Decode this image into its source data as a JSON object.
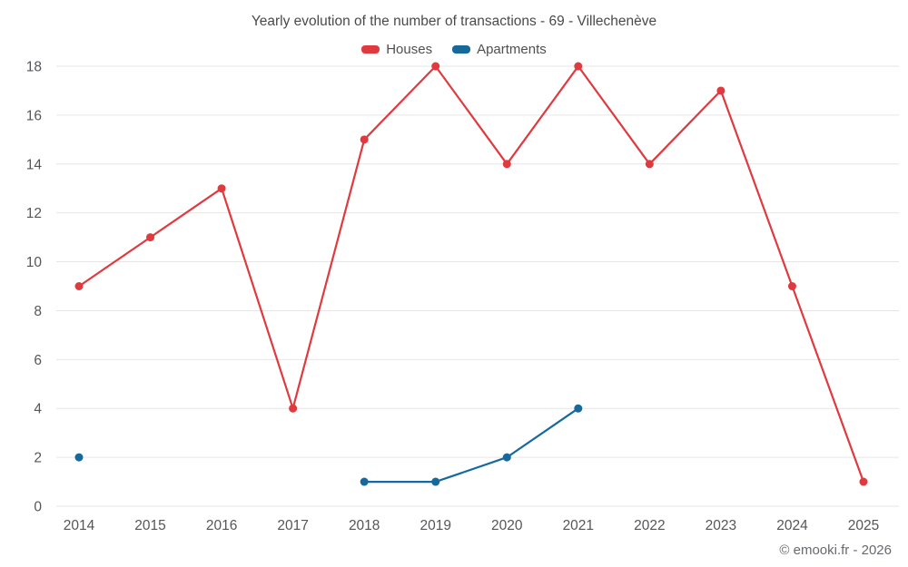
{
  "title": "Yearly evolution of the number of transactions - 69 - Villechenève",
  "legend": [
    {
      "label": "Houses",
      "color": "#e0393e"
    },
    {
      "label": "Apartments",
      "color": "#17699c"
    }
  ],
  "footer": "© emooki.fr - 2026",
  "colors": {
    "grid": "#e6e6e6",
    "tick_text": "#55565a"
  },
  "chart_data": {
    "type": "line",
    "title": "Yearly evolution of the number of transactions - 69 - Villechenève",
    "categories": [
      "2014",
      "2015",
      "2016",
      "2017",
      "2018",
      "2019",
      "2020",
      "2021",
      "2022",
      "2023",
      "2024",
      "2025"
    ],
    "series": [
      {
        "name": "Houses",
        "color": "#e0393e",
        "values": [
          9,
          11,
          13,
          4,
          15,
          18,
          14,
          18,
          14,
          17,
          9,
          1
        ]
      },
      {
        "name": "Apartments",
        "color": "#17699c",
        "values": [
          2,
          null,
          null,
          null,
          1,
          1,
          2,
          4,
          null,
          null,
          null,
          null
        ]
      }
    ],
    "xlabel": "",
    "ylabel": "",
    "ylim": [
      0,
      18
    ],
    "yticks": [
      0,
      2,
      4,
      6,
      8,
      10,
      12,
      14,
      16,
      18
    ],
    "grid": "horizontal",
    "legend_position": "top"
  }
}
